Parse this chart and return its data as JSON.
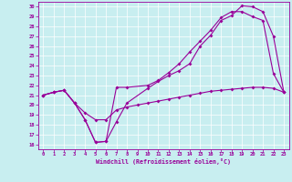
{
  "xlabel": "Windchill (Refroidissement éolien,°C)",
  "bg_color": "#c8eef0",
  "line_color": "#990099",
  "grid_color": "#ffffff",
  "xlim": [
    -0.5,
    23.5
  ],
  "ylim": [
    15.5,
    30.5
  ],
  "xticks": [
    0,
    1,
    2,
    3,
    4,
    5,
    6,
    7,
    8,
    9,
    10,
    11,
    12,
    13,
    14,
    15,
    16,
    17,
    18,
    19,
    20,
    21,
    22,
    23
  ],
  "yticks": [
    16,
    17,
    18,
    19,
    20,
    21,
    22,
    23,
    24,
    25,
    26,
    27,
    28,
    29,
    30
  ],
  "line1_x": [
    0,
    1,
    2,
    3,
    4,
    5,
    6,
    7,
    8,
    9,
    10,
    11,
    12,
    13,
    14,
    15,
    16,
    17,
    18,
    19,
    20,
    21,
    22,
    23
  ],
  "line1_y": [
    21,
    21.3,
    21.5,
    20.2,
    19.2,
    18.5,
    18.5,
    19.5,
    19.8,
    20.0,
    20.2,
    20.4,
    20.6,
    20.8,
    21.0,
    21.2,
    21.4,
    21.5,
    21.6,
    21.7,
    21.8,
    21.8,
    21.7,
    21.3
  ],
  "line2_x": [
    0,
    1,
    2,
    3,
    4,
    5,
    6,
    7,
    8,
    10,
    11,
    12,
    13,
    14,
    15,
    16,
    17,
    18,
    19,
    20,
    21,
    22,
    23
  ],
  "line2_y": [
    21,
    21.3,
    21.5,
    20.2,
    18.5,
    16.2,
    16.3,
    18.3,
    20.2,
    21.7,
    22.4,
    23.0,
    23.5,
    24.2,
    26.0,
    27.1,
    28.6,
    29.1,
    30.1,
    30.0,
    29.5,
    27.0,
    21.3
  ],
  "line3_x": [
    0,
    1,
    2,
    3,
    4,
    5,
    6,
    7,
    8,
    10,
    11,
    12,
    13,
    14,
    15,
    16,
    17,
    18,
    19,
    20,
    21,
    22,
    23
  ],
  "line3_y": [
    21,
    21.3,
    21.5,
    20.2,
    18.5,
    16.2,
    16.3,
    21.8,
    21.8,
    22.0,
    22.5,
    23.3,
    24.2,
    25.4,
    26.5,
    27.6,
    28.9,
    29.5,
    29.5,
    29.0,
    28.6,
    23.2,
    21.3
  ]
}
